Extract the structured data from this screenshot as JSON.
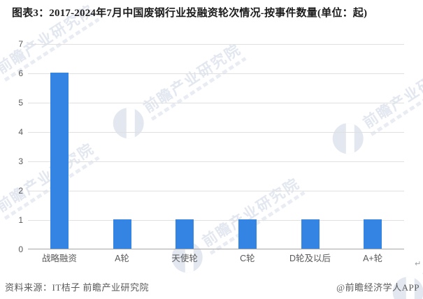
{
  "title": "图表3：2017-2024年7月中国废钢行业投融资轮次情况-按事件数量(单位：起)",
  "footer": {
    "source": "资料来源：IT桔子 前瞻产业研究院",
    "credit": "@前瞻经济学人APP",
    "return_mark": "↵"
  },
  "watermark": {
    "text": "前瞻产业研究院",
    "logo": "qianzhan-logo",
    "color": "#e3e7f0"
  },
  "chart_data": {
    "type": "bar",
    "title": "图表3：2017-2024年7月中国废钢行业投融资轮次情况-按事件数量(单位：起)",
    "categories": [
      "战略融资",
      "A轮",
      "天使轮",
      "C轮",
      "D轮及以后",
      "A+轮"
    ],
    "values": [
      6,
      1,
      1,
      1,
      1,
      1
    ],
    "unit": "起",
    "xlabel": "",
    "ylabel": "",
    "ylim": [
      0,
      7
    ],
    "y_ticks": [
      0,
      1,
      2,
      3,
      4,
      5,
      6,
      7
    ],
    "grid": true,
    "legend": false,
    "bar_color": "#3485e3",
    "gridline_color": "#e0e0e0",
    "axis_line_color": "#a6a6a6",
    "tick_label_color": "#595959"
  }
}
